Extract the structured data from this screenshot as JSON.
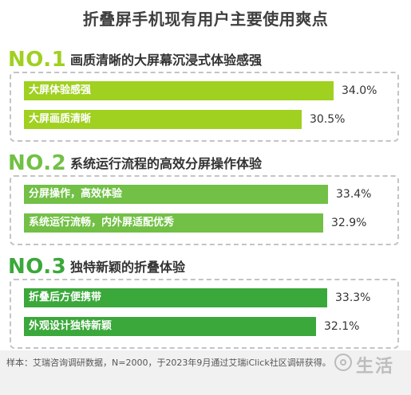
{
  "chart_data": {
    "type": "bar",
    "orientation": "horizontal",
    "title": "折叠屏手机现有用户主要使用爽点",
    "xlim": [
      0,
      40
    ],
    "groups": [
      {
        "rank": "NO.1",
        "title": "画质清晰的大屏幕沉浸式体验感强",
        "color": "#a0d020",
        "items": [
          {
            "label": "大屏体验感强",
            "value": 34.0,
            "display": "34.0%"
          },
          {
            "label": "大屏画质清晰",
            "value": 30.5,
            "display": "30.5%"
          }
        ]
      },
      {
        "rank": "NO.2",
        "title": "系统运行流程的高效分屏操作体验",
        "color": "#72c046",
        "items": [
          {
            "label": "分屏操作，高效体验",
            "value": 33.4,
            "display": "33.4%"
          },
          {
            "label": "系统运行流畅，内外屏适配优秀",
            "value": 32.9,
            "display": "32.9%"
          }
        ]
      },
      {
        "rank": "NO.3",
        "title": "独特新颖的折叠体验",
        "color": "#3aa83a",
        "items": [
          {
            "label": "折叠后方便携带",
            "value": 33.3,
            "display": "33.3%"
          },
          {
            "label": "外观设计独特新颖",
            "value": 32.1,
            "display": "32.1%"
          }
        ]
      }
    ]
  },
  "footer": {
    "source": "样本：艾瑞咨询调研数据，N=2000，于2023年9月通过艾瑞iClick社区调研获得。",
    "watermark": "生活"
  }
}
